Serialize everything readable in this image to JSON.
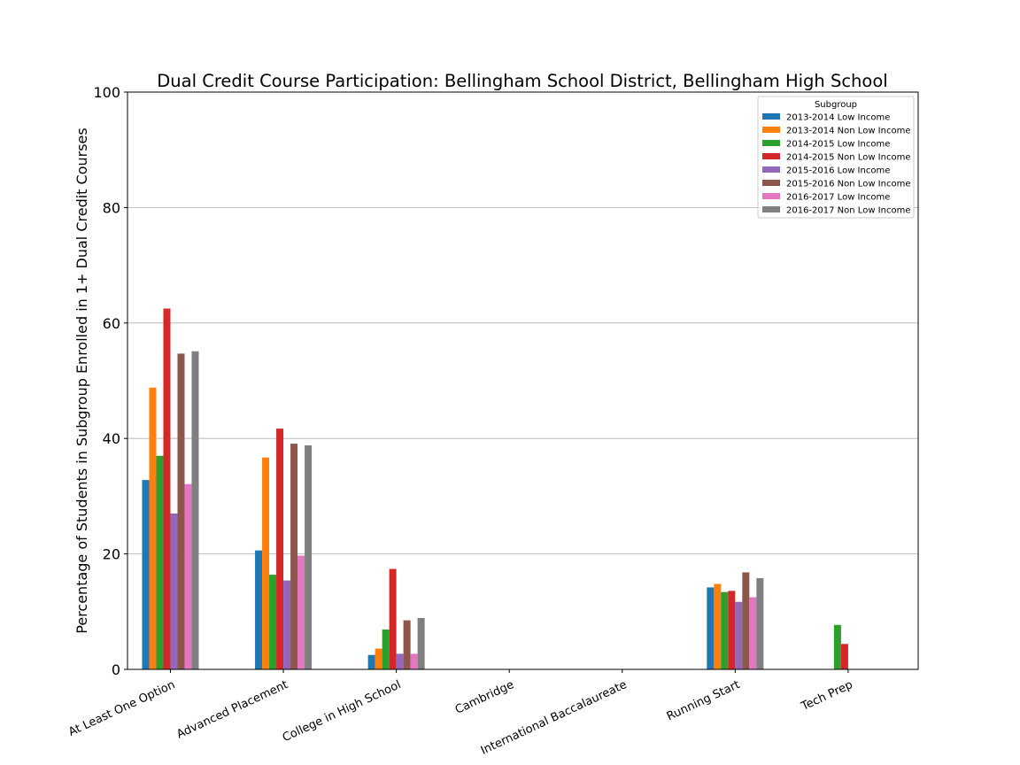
{
  "chart_data": {
    "type": "bar",
    "title": "Dual Credit Course Participation: Bellingham School District, Bellingham High School",
    "xlabel": "",
    "ylabel": "Percentage of Students in Subgroup Enrolled in 1+ Dual Credit Courses",
    "ylim": [
      0,
      100
    ],
    "yticks": [
      0,
      20,
      40,
      60,
      80,
      100
    ],
    "grid": "horizontal",
    "legend": {
      "title": "Subgroup",
      "placement": "top-right"
    },
    "categories": [
      "At Least One Option",
      "Advanced Placement",
      "College in High School",
      "Cambridge",
      "International Baccalaureate",
      "Running Start",
      "Tech Prep"
    ],
    "series": [
      {
        "name": "2013-2014 Low Income",
        "color": "#1f77b4",
        "values": [
          32.8,
          20.6,
          2.5,
          0,
          0,
          14.2,
          0
        ]
      },
      {
        "name": "2013-2014 Non Low Income",
        "color": "#ff7f0e",
        "values": [
          48.8,
          36.7,
          3.6,
          0,
          0,
          14.8,
          0
        ]
      },
      {
        "name": "2014-2015 Low Income",
        "color": "#2ca02c",
        "values": [
          37.0,
          16.4,
          6.9,
          0,
          0,
          13.4,
          7.7
        ]
      },
      {
        "name": "2014-2015 Non Low Income",
        "color": "#d62728",
        "values": [
          62.5,
          41.7,
          17.4,
          0,
          0,
          13.6,
          4.4
        ]
      },
      {
        "name": "2015-2016 Low Income",
        "color": "#9467bd",
        "values": [
          27.0,
          15.4,
          2.7,
          0,
          0,
          11.7,
          0
        ]
      },
      {
        "name": "2015-2016 Non Low Income",
        "color": "#8c564b",
        "values": [
          54.7,
          39.1,
          8.5,
          0,
          0,
          16.8,
          0
        ]
      },
      {
        "name": "2016-2017 Low Income",
        "color": "#e377c2",
        "values": [
          32.1,
          19.7,
          2.7,
          0,
          0,
          12.5,
          0
        ]
      },
      {
        "name": "2016-2017 Non Low Income",
        "color": "#7f7f7f",
        "values": [
          55.1,
          38.8,
          8.9,
          0,
          0,
          15.8,
          0
        ]
      }
    ]
  }
}
